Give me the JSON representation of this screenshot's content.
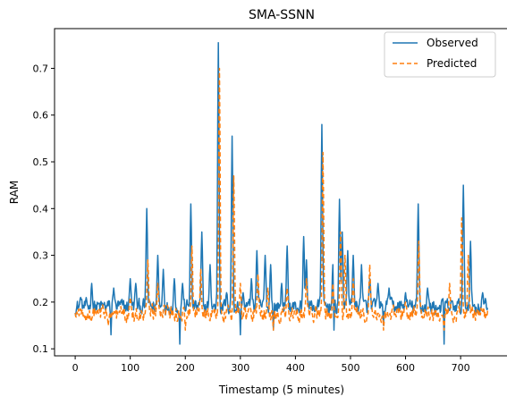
{
  "chart_data": {
    "type": "line",
    "title": "SMA-SSNN",
    "xlabel": "Timestamp (5 minutes)",
    "ylabel": "RAM",
    "xlim": [
      -37.5,
      787.5
    ],
    "ylim": [
      0.085,
      0.785
    ],
    "xticks": [
      0,
      100,
      200,
      300,
      400,
      500,
      600,
      700
    ],
    "yticks": [
      0.1,
      0.2,
      0.3,
      0.4,
      0.5,
      0.6,
      0.7
    ],
    "xtick_labels": [
      "0",
      "100",
      "200",
      "300",
      "400",
      "500",
      "600",
      "700"
    ],
    "ytick_labels": [
      "0.1",
      "0.2",
      "0.3",
      "0.4",
      "0.5",
      "0.6",
      "0.7"
    ],
    "grid": false,
    "legend_position": "top-right",
    "n_points": 750,
    "series": [
      {
        "name": "Observed",
        "color": "#1f77b4",
        "dash": "solid",
        "baseline": [
          0.165,
          0.215
        ],
        "peaks": [
          [
            10,
            0.21
          ],
          [
            30,
            0.24
          ],
          [
            70,
            0.23
          ],
          [
            100,
            0.25
          ],
          [
            110,
            0.24
          ],
          [
            130,
            0.4
          ],
          [
            150,
            0.3
          ],
          [
            160,
            0.27
          ],
          [
            180,
            0.25
          ],
          [
            195,
            0.24
          ],
          [
            210,
            0.41
          ],
          [
            230,
            0.35
          ],
          [
            245,
            0.28
          ],
          [
            260,
            0.755
          ],
          [
            275,
            0.22
          ],
          [
            285,
            0.555
          ],
          [
            305,
            0.22
          ],
          [
            320,
            0.25
          ],
          [
            330,
            0.31
          ],
          [
            345,
            0.3
          ],
          [
            355,
            0.28
          ],
          [
            375,
            0.24
          ],
          [
            385,
            0.32
          ],
          [
            415,
            0.34
          ],
          [
            420,
            0.29
          ],
          [
            448,
            0.58
          ],
          [
            468,
            0.28
          ],
          [
            480,
            0.42
          ],
          [
            485,
            0.35
          ],
          [
            495,
            0.31
          ],
          [
            505,
            0.3
          ],
          [
            520,
            0.28
          ],
          [
            535,
            0.25
          ],
          [
            550,
            0.24
          ],
          [
            570,
            0.23
          ],
          [
            600,
            0.22
          ],
          [
            623,
            0.41
          ],
          [
            640,
            0.23
          ],
          [
            670,
            0.22
          ],
          [
            705,
            0.45
          ],
          [
            718,
            0.33
          ],
          [
            740,
            0.22
          ]
        ],
        "dips": [
          [
            65,
            0.13
          ],
          [
            190,
            0.11
          ],
          [
            300,
            0.13
          ],
          [
            360,
            0.14
          ],
          [
            470,
            0.14
          ],
          [
            670,
            0.11
          ],
          [
            560,
            0.15
          ]
        ]
      },
      {
        "name": "Predicted",
        "color": "#ff7f0e",
        "dash": "dashed",
        "baseline": [
          0.15,
          0.2
        ],
        "peaks": [
          [
            100,
            0.21
          ],
          [
            132,
            0.29
          ],
          [
            150,
            0.24
          ],
          [
            212,
            0.32
          ],
          [
            228,
            0.27
          ],
          [
            262,
            0.7
          ],
          [
            288,
            0.47
          ],
          [
            300,
            0.24
          ],
          [
            332,
            0.26
          ],
          [
            350,
            0.23
          ],
          [
            385,
            0.23
          ],
          [
            420,
            0.25
          ],
          [
            450,
            0.52
          ],
          [
            468,
            0.24
          ],
          [
            482,
            0.35
          ],
          [
            490,
            0.3
          ],
          [
            505,
            0.25
          ],
          [
            535,
            0.28
          ],
          [
            600,
            0.2
          ],
          [
            624,
            0.33
          ],
          [
            680,
            0.24
          ],
          [
            702,
            0.38
          ],
          [
            714,
            0.3
          ],
          [
            740,
            0.18
          ]
        ],
        "dips": [
          [
            60,
            0.15
          ],
          [
            200,
            0.14
          ],
          [
            360,
            0.14
          ],
          [
            560,
            0.14
          ],
          [
            670,
            0.14
          ]
        ]
      }
    ]
  }
}
